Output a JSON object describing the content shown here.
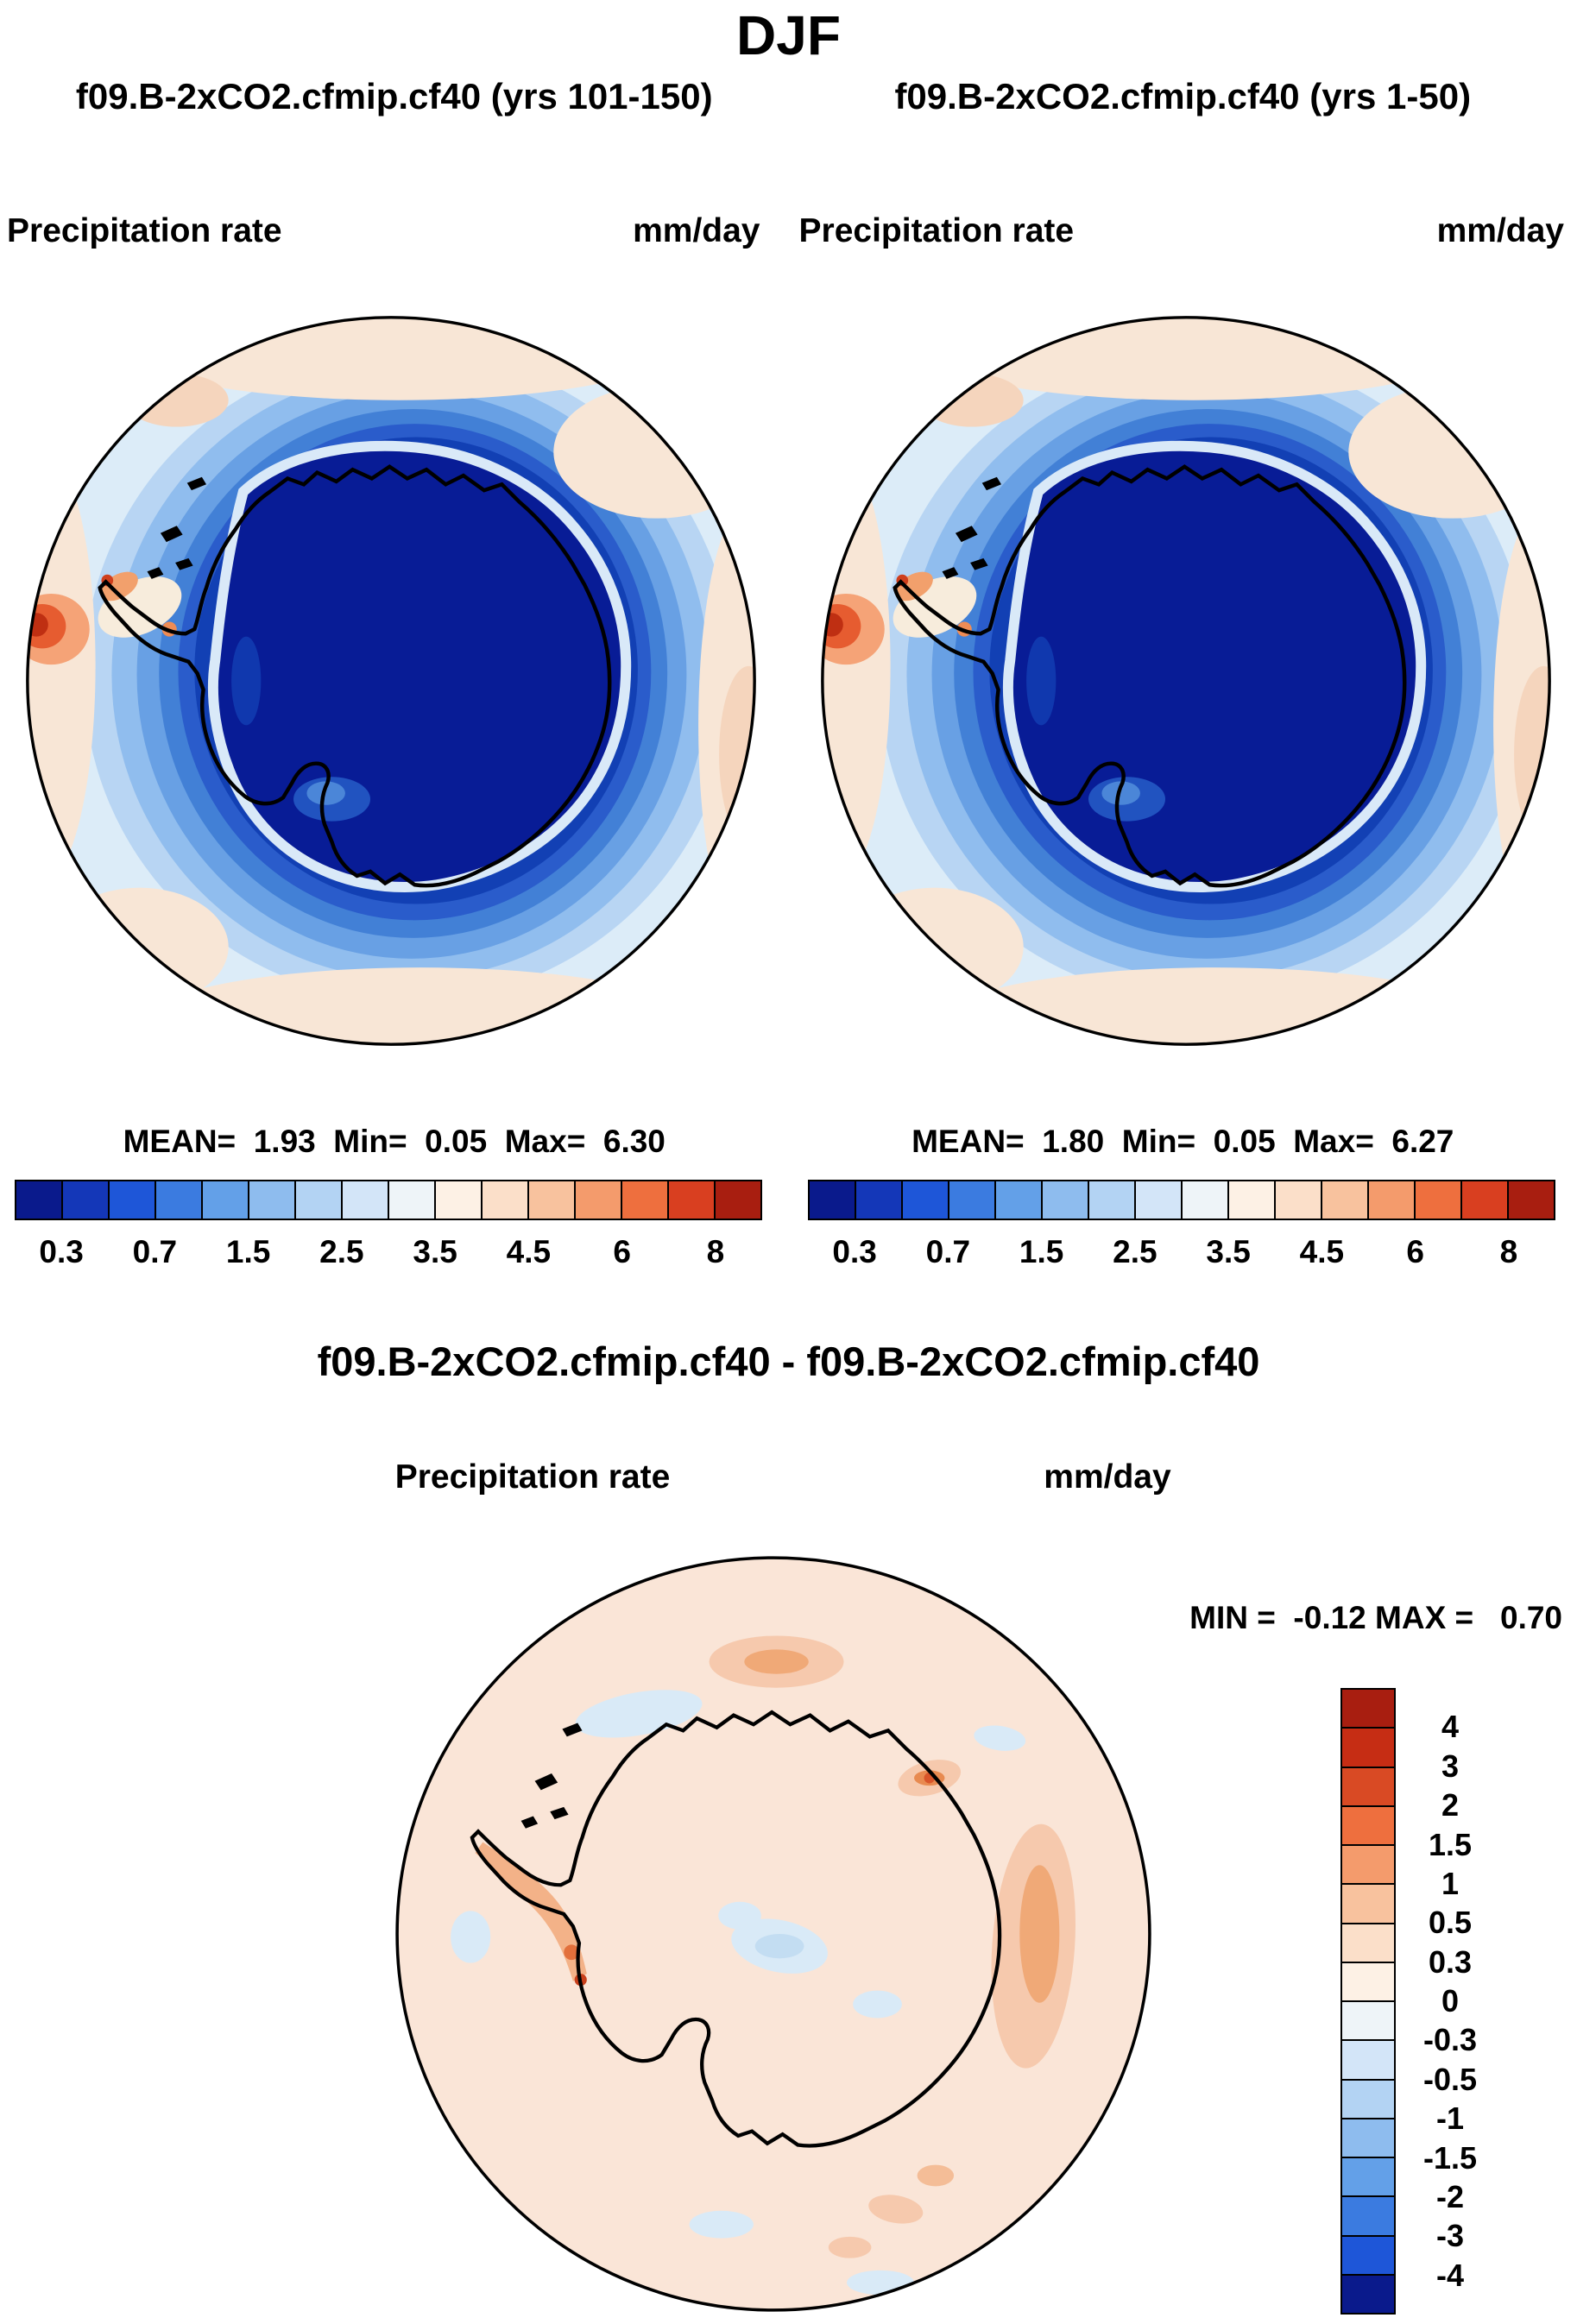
{
  "header": {
    "title": "DJF"
  },
  "panels": {
    "left": {
      "subtitle": "f09.B-2xCO2.cfmip.cf40 (yrs 101-150)",
      "var_label": "Precipitation rate",
      "units": "mm/day",
      "stats_line": "MEAN=  1.93  Min=  0.05  Max=  6.30",
      "ticks": [
        "0.3",
        "0.7",
        "1.5",
        "2.5",
        "3.5",
        "4.5",
        "6",
        "8"
      ]
    },
    "right": {
      "subtitle": "f09.B-2xCO2.cfmip.cf40 (yrs 1-50)",
      "var_label": "Precipitation rate",
      "units": "mm/day",
      "stats_line": "MEAN=  1.80  Min=  0.05  Max=  6.27",
      "ticks": [
        "0.3",
        "0.7",
        "1.5",
        "2.5",
        "3.5",
        "4.5",
        "6",
        "8"
      ]
    },
    "diff": {
      "title": "f09.B-2xCO2.cfmip.cf40 - f09.B-2xCO2.cfmip.cf40",
      "var_label": "Precipitation rate",
      "units": "mm/day",
      "minmax_line": "MIN =  -0.12 MAX =   0.70",
      "ticks": [
        "4",
        "3",
        "2",
        "1.5",
        "1",
        "0.5",
        "0.3",
        "0",
        "-0.3",
        "-0.5",
        "-1",
        "-1.5",
        "-2",
        "-3",
        "-4"
      ]
    }
  },
  "chart_data": [
    {
      "type": "heatmap",
      "season": "DJF",
      "title": "f09.B-2xCO2.cfmip.cf40 (yrs 101-150)",
      "variable": "Precipitation rate",
      "units": "mm/day",
      "projection": "south polar stereographic map of Antarctica",
      "stats": {
        "mean": 1.93,
        "min": 0.05,
        "max": 6.3
      },
      "colorbar_tick_values": [
        0.3,
        0.7,
        1.5,
        2.5,
        3.5,
        4.5,
        6,
        8
      ],
      "palette": [
        "#0a1a8c",
        "#1437b8",
        "#1e56d8",
        "#3b7be0",
        "#63a0e8",
        "#8ebcee",
        "#b3d3f3",
        "#d3e5f8",
        "#eef4f8",
        "#fdf1e5",
        "#fbdfc9",
        "#f8c29e",
        "#f49b6c",
        "#ee6f3e",
        "#d93f20",
        "#a81e10"
      ]
    },
    {
      "type": "heatmap",
      "season": "DJF",
      "title": "f09.B-2xCO2.cfmip.cf40 (yrs 1-50)",
      "variable": "Precipitation rate",
      "units": "mm/day",
      "projection": "south polar stereographic map of Antarctica",
      "stats": {
        "mean": 1.8,
        "min": 0.05,
        "max": 6.27
      },
      "colorbar_tick_values": [
        0.3,
        0.7,
        1.5,
        2.5,
        3.5,
        4.5,
        6,
        8
      ],
      "palette": [
        "#0a1a8c",
        "#1437b8",
        "#1e56d8",
        "#3b7be0",
        "#63a0e8",
        "#8ebcee",
        "#b3d3f3",
        "#d3e5f8",
        "#eef4f8",
        "#fdf1e5",
        "#fbdfc9",
        "#f8c29e",
        "#f49b6c",
        "#ee6f3e",
        "#d93f20",
        "#a81e10"
      ]
    },
    {
      "type": "heatmap",
      "season": "DJF",
      "title": "f09.B-2xCO2.cfmip.cf40 - f09.B-2xCO2.cfmip.cf40",
      "variable": "Precipitation rate",
      "units": "mm/day",
      "projection": "south polar stereographic map of Antarctica",
      "stats": {
        "min": -0.12,
        "max": 0.7
      },
      "colorbar_tick_values": [
        4,
        3,
        2,
        1.5,
        1,
        0.5,
        0.3,
        0,
        -0.3,
        -0.5,
        -1,
        -1.5,
        -2,
        -3,
        -4
      ],
      "palette": [
        "#a81e10",
        "#c62d14",
        "#d94a24",
        "#ee6f3e",
        "#f49b6c",
        "#f8c29e",
        "#fbdfc9",
        "#fdf1e5",
        "#eef4f8",
        "#d3e5f8",
        "#b3d3f3",
        "#8ebcee",
        "#63a0e8",
        "#3b7be0",
        "#1e56d8",
        "#0a1a8c"
      ]
    }
  ]
}
